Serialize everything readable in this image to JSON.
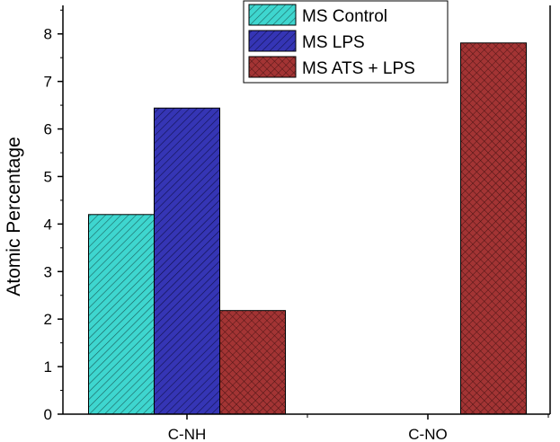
{
  "chart_data": {
    "type": "bar",
    "title": "",
    "xlabel": "",
    "ylabel": "Atomic Percentage",
    "categories": [
      "C-NH",
      "C-NO"
    ],
    "ylim": [
      0,
      8.6
    ],
    "yticks": [
      0,
      1,
      2,
      3,
      4,
      5,
      6,
      7,
      8
    ],
    "grid": false,
    "legend_position": "top-right",
    "series": [
      {
        "name": "MS Control",
        "values": [
          4.2,
          null
        ],
        "color": "#3ED6CF",
        "pattern": "diagonal-hatch"
      },
      {
        "name": "MS LPS",
        "values": [
          6.44,
          null
        ],
        "color": "#3535B5",
        "pattern": "diagonal-hatch"
      },
      {
        "name": "MS ATS + LPS",
        "values": [
          2.18,
          7.81
        ],
        "color": "#A33434",
        "pattern": "crosshatch"
      }
    ]
  }
}
